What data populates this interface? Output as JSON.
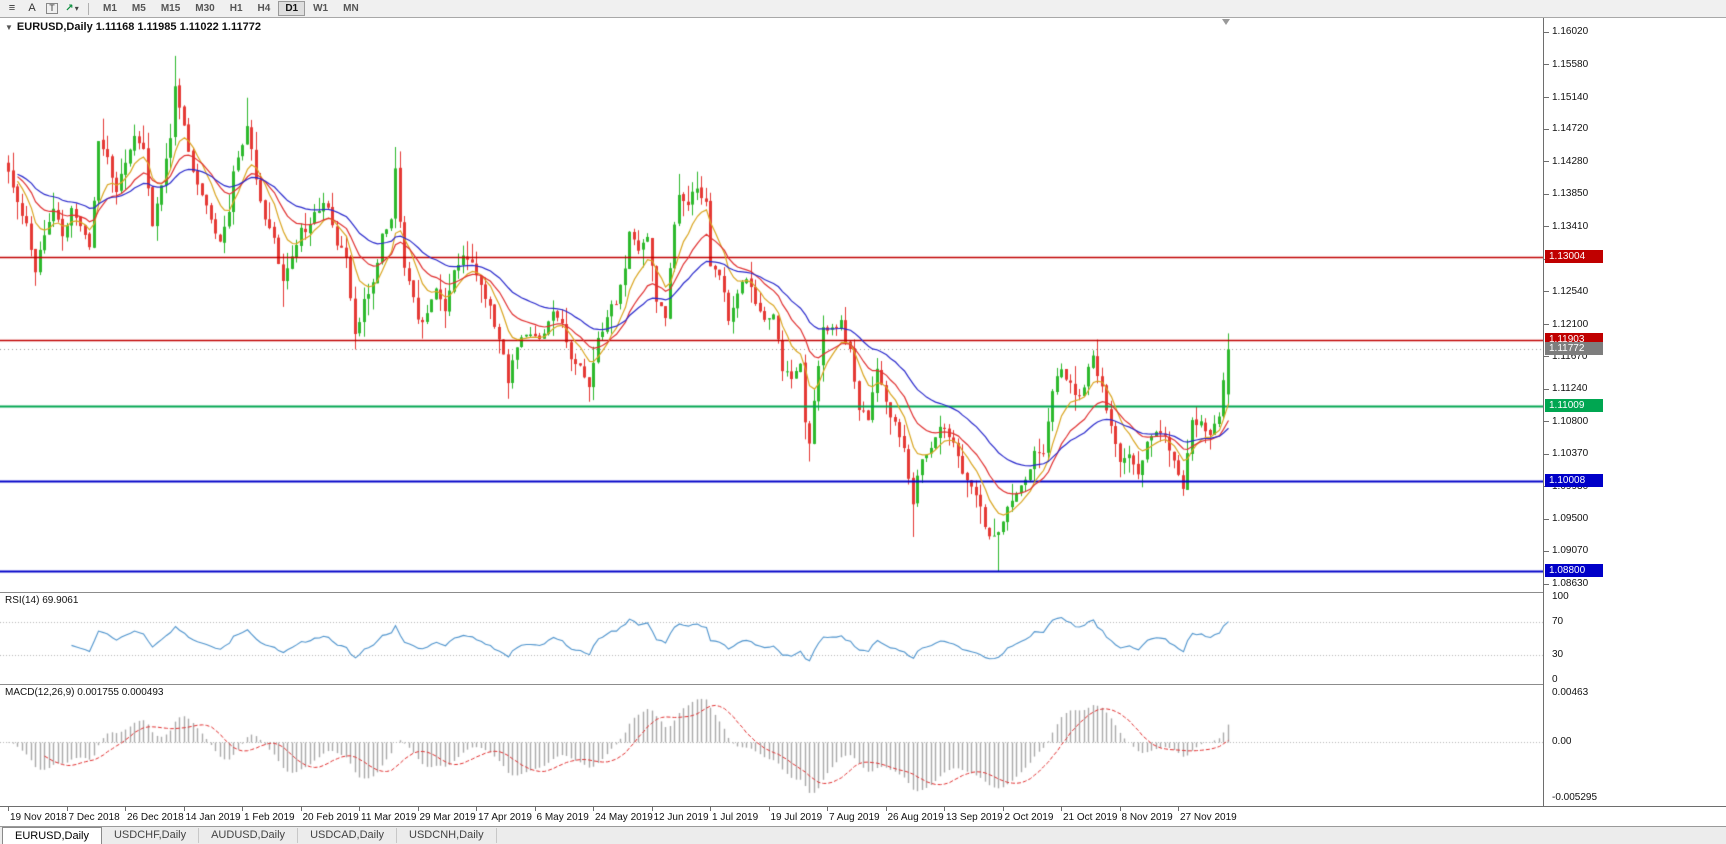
{
  "toolbar": {
    "icon_glyphs": {
      "menu": "≡",
      "annotate": "A",
      "text": "T",
      "indicator": "↗",
      "caret": "▾"
    },
    "timeframes": [
      "M1",
      "M5",
      "M15",
      "M30",
      "H1",
      "H4",
      "D1",
      "W1",
      "MN"
    ],
    "active_timeframe": "D1"
  },
  "chart": {
    "collapse_marker": "▼",
    "symbol_label": "EURUSD,Daily",
    "title": "EURUSD,Daily 1.11168 1.11985 1.11022 1.11772",
    "ohlc": {
      "open": "1.11168",
      "high": "1.11985",
      "low": "1.11022",
      "close": "1.11772"
    }
  },
  "price_axis": {
    "ticks": [
      "1.16020",
      "1.15580",
      "1.15140",
      "1.14720",
      "1.14280",
      "1.13850",
      "1.13410",
      "1.12980",
      "1.12540",
      "1.12100",
      "1.11670",
      "1.11240",
      "1.10800",
      "1.10370",
      "1.09930",
      "1.09500",
      "1.09070",
      "1.08630"
    ],
    "badges": [
      {
        "text": "1.13004",
        "price": 1.13004,
        "bg": "#c00000"
      },
      {
        "text": "1.11903",
        "price": 1.11903,
        "bg": "#c00000"
      },
      {
        "text": "1.11772",
        "price": 1.11772,
        "bg": "#7d7d7d"
      },
      {
        "text": "1.11009",
        "price": 1.11009,
        "bg": "#00a651"
      },
      {
        "text": "1.10008",
        "price": 1.10008,
        "bg": "#0000c8"
      },
      {
        "text": "1.08800",
        "price": 1.088,
        "bg": "#0000c8"
      }
    ]
  },
  "rsi": {
    "label": "RSI(14)",
    "value": "69.9061",
    "display": "RSI(14) 69.9061",
    "period": 14,
    "levels": [
      70,
      30
    ],
    "axis_labels": [
      {
        "text": "100",
        "value": 100
      },
      {
        "text": "70",
        "value": 70
      },
      {
        "text": "30",
        "value": 30
      },
      {
        "text": "0",
        "value": 0
      }
    ]
  },
  "macd": {
    "label": "MACD(12,26,9)",
    "values": [
      "0.001755",
      "0.000493"
    ],
    "display": "MACD(12,26,9) 0.001755 0.000493",
    "fast": 12,
    "slow": 26,
    "signal": 9,
    "axis_labels": [
      {
        "text": "0.00463",
        "value": 0.00463
      },
      {
        "text": "0.00",
        "value": 0
      },
      {
        "text": "-0.005295",
        "value": -0.005295
      }
    ]
  },
  "time_axis": {
    "labels": [
      "19 Nov 2018",
      "7 Dec 2018",
      "26 Dec 2018",
      "14 Jan 2019",
      "1 Feb 2019",
      "20 Feb 2019",
      "11 Mar 2019",
      "29 Mar 2019",
      "17 Apr 2019",
      "6 May 2019",
      "24 May 2019",
      "12 Jun 2019",
      "1 Jul 2019",
      "19 Jul 2019",
      "7 Aug 2019",
      "26 Aug 2019",
      "13 Sep 2019",
      "2 Oct 2019",
      "21 Oct 2019",
      "8 Nov 2019",
      "27 Nov 2019"
    ],
    "label_every_n_candles": 13
  },
  "tabs": [
    {
      "label": "EURUSD,Daily",
      "active": true
    },
    {
      "label": "USDCHF,Daily",
      "active": false
    },
    {
      "label": "AUDUSD,Daily",
      "active": false
    },
    {
      "label": "USDCAD,Daily",
      "active": false
    },
    {
      "label": "USDCNH,Daily",
      "active": false
    }
  ],
  "colors": {
    "up": "#2db92d",
    "down": "#e53935",
    "rsi": "#4f94cd",
    "macd_hist": "#a9a9a9",
    "macd_signal": "#e03030",
    "current_price": "#9a9a9a",
    "level_red": "#c00000",
    "level_green": "#00a651",
    "level_blue": "#0000c8"
  },
  "chart_data": {
    "type": "candlestick",
    "symbol": "EURUSD",
    "timeframe": "D1",
    "visible_range": {
      "price_max": 1.1602,
      "price_min": 1.0863
    },
    "candle_count": 272,
    "last_candle": {
      "open": 1.11168,
      "high": 1.11985,
      "low": 1.11022,
      "close": 1.11772
    },
    "horizontal_lines": [
      {
        "price": 1.13004,
        "color": "#c00000",
        "width": 1.4
      },
      {
        "price": 1.11903,
        "color": "#c00000",
        "width": 1.4
      },
      {
        "price": 1.11009,
        "color": "#00a651",
        "width": 2
      },
      {
        "price": 1.10008,
        "color": "#0000c8",
        "width": 2
      },
      {
        "price": 1.088,
        "color": "#0000c8",
        "width": 2
      }
    ],
    "moving_averages": [
      {
        "period": 8,
        "color": "#d9a520",
        "type": "ema"
      },
      {
        "period": 17,
        "color": "#e03030",
        "type": "ema"
      },
      {
        "period": 34,
        "color": "#2929cc",
        "type": "ema"
      }
    ],
    "close_waypoints": [
      [
        0,
        1.1415
      ],
      [
        2,
        1.1372
      ],
      [
        4,
        1.134
      ],
      [
        6,
        1.1285
      ],
      [
        8,
        1.133
      ],
      [
        10,
        1.1362
      ],
      [
        12,
        1.133
      ],
      [
        14,
        1.1368
      ],
      [
        16,
        1.1348
      ],
      [
        18,
        1.1312
      ],
      [
        20,
        1.1452
      ],
      [
        22,
        1.143
      ],
      [
        24,
        1.1388
      ],
      [
        26,
        1.1432
      ],
      [
        28,
        1.1465
      ],
      [
        30,
        1.1442
      ],
      [
        32,
        1.1345
      ],
      [
        34,
        1.1398
      ],
      [
        36,
        1.146
      ],
      [
        37,
        1.1532
      ],
      [
        39,
        1.1475
      ],
      [
        41,
        1.1415
      ],
      [
        43,
        1.139
      ],
      [
        45,
        1.1345
      ],
      [
        47,
        1.1315
      ],
      [
        49,
        1.1362
      ],
      [
        50,
        1.1415
      ],
      [
        52,
        1.1448
      ],
      [
        53,
        1.1482
      ],
      [
        55,
        1.1402
      ],
      [
        57,
        1.1352
      ],
      [
        59,
        1.1322
      ],
      [
        61,
        1.1268
      ],
      [
        63,
        1.1302
      ],
      [
        65,
        1.1338
      ],
      [
        67,
        1.1342
      ],
      [
        69,
        1.1368
      ],
      [
        71,
        1.1372
      ],
      [
        73,
        1.1322
      ],
      [
        75,
        1.1302
      ],
      [
        77,
        1.1196
      ],
      [
        79,
        1.1242
      ],
      [
        81,
        1.1262
      ],
      [
        83,
        1.1328
      ],
      [
        85,
        1.1352
      ],
      [
        86,
        1.1416
      ],
      [
        88,
        1.1292
      ],
      [
        90,
        1.1252
      ],
      [
        91,
        1.1218
      ],
      [
        93,
        1.1222
      ],
      [
        95,
        1.1262
      ],
      [
        97,
        1.1228
      ],
      [
        99,
        1.1282
      ],
      [
        101,
        1.1302
      ],
      [
        103,
        1.1298
      ],
      [
        105,
        1.1262
      ],
      [
        107,
        1.1232
      ],
      [
        109,
        1.1192
      ],
      [
        111,
        1.1138
      ],
      [
        113,
        1.1182
      ],
      [
        115,
        1.1202
      ],
      [
        117,
        1.1198
      ],
      [
        119,
        1.1192
      ],
      [
        121,
        1.1232
      ],
      [
        123,
        1.1208
      ],
      [
        125,
        1.1162
      ],
      [
        127,
        1.1152
      ],
      [
        129,
        1.1132
      ],
      [
        131,
        1.1192
      ],
      [
        133,
        1.1222
      ],
      [
        135,
        1.1242
      ],
      [
        137,
        1.1282
      ],
      [
        138,
        1.1332
      ],
      [
        140,
        1.1312
      ],
      [
        142,
        1.1328
      ],
      [
        144,
        1.1242
      ],
      [
        146,
        1.1222
      ],
      [
        148,
        1.134
      ],
      [
        149,
        1.139
      ],
      [
        151,
        1.1372
      ],
      [
        153,
        1.1392
      ],
      [
        155,
        1.1372
      ],
      [
        156,
        1.1288
      ],
      [
        158,
        1.1282
      ],
      [
        160,
        1.1218
      ],
      [
        162,
        1.1252
      ],
      [
        164,
        1.1272
      ],
      [
        166,
        1.1242
      ],
      [
        168,
        1.1218
      ],
      [
        170,
        1.1222
      ],
      [
        172,
        1.1152
      ],
      [
        174,
        1.1142
      ],
      [
        176,
        1.1152
      ],
      [
        177,
        1.1076
      ],
      [
        178,
        1.1046
      ],
      [
        179,
        1.1112
      ],
      [
        181,
        1.1202
      ],
      [
        183,
        1.1202
      ],
      [
        185,
        1.1212
      ],
      [
        187,
        1.1172
      ],
      [
        189,
        1.1102
      ],
      [
        191,
        1.1088
      ],
      [
        193,
        1.1146
      ],
      [
        195,
        1.1102
      ],
      [
        197,
        1.1082
      ],
      [
        199,
        1.1042
      ],
      [
        201,
        1.0972
      ],
      [
        203,
        1.1032
      ],
      [
        205,
        1.1042
      ],
      [
        207,
        1.1072
      ],
      [
        209,
        1.1062
      ],
      [
        211,
        1.1032
      ],
      [
        213,
        1.1002
      ],
      [
        215,
        1.0982
      ],
      [
        217,
        1.0942
      ],
      [
        219,
        1.0922
      ],
      [
        220,
        1.0932
      ],
      [
        222,
        1.0962
      ],
      [
        224,
        1.0982
      ],
      [
        226,
        1.1002
      ],
      [
        228,
        1.1042
      ],
      [
        230,
        1.1032
      ],
      [
        232,
        1.1122
      ],
      [
        234,
        1.1152
      ],
      [
        236,
        1.1132
      ],
      [
        238,
        1.1112
      ],
      [
        240,
        1.1152
      ],
      [
        241,
        1.1167
      ],
      [
        243,
        1.1122
      ],
      [
        245,
        1.1072
      ],
      [
        247,
        1.1022
      ],
      [
        249,
        1.1032
      ],
      [
        251,
        1.1012
      ],
      [
        253,
        1.1052
      ],
      [
        255,
        1.1072
      ],
      [
        257,
        1.1062
      ],
      [
        259,
        1.1022
      ],
      [
        261,
        1.0996
      ],
      [
        263,
        1.1078
      ],
      [
        265,
        1.1077
      ],
      [
        267,
        1.1062
      ],
      [
        269,
        1.1092
      ],
      [
        270,
        1.113
      ],
      [
        271,
        1.1177
      ]
    ],
    "wick_overrides": [
      {
        "i": 21,
        "h": 1.1486
      },
      {
        "i": 37,
        "h": 1.157
      },
      {
        "i": 53,
        "h": 1.1514
      },
      {
        "i": 61,
        "l": 1.1234
      },
      {
        "i": 77,
        "l": 1.1177
      },
      {
        "i": 86,
        "h": 1.1448
      },
      {
        "i": 111,
        "l": 1.1111
      },
      {
        "i": 129,
        "l": 1.1107
      },
      {
        "i": 149,
        "h": 1.1412
      },
      {
        "i": 178,
        "l": 1.1027
      },
      {
        "i": 201,
        "l": 1.0926
      },
      {
        "i": 220,
        "l": 1.088
      },
      {
        "i": 261,
        "l": 1.0981
      }
    ]
  }
}
